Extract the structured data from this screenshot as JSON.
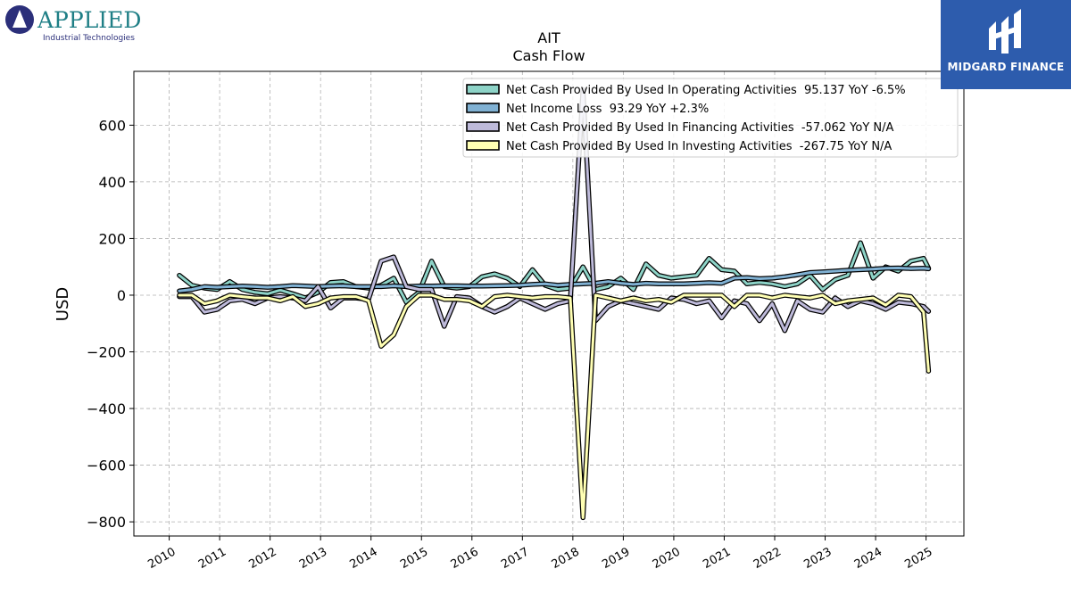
{
  "logos": {
    "left": {
      "brand": "APPLIED",
      "sub": "Industrial Technologies",
      "icon": "applied-logo-icon"
    },
    "right": {
      "wordmark": "MIDGARD FINANCE",
      "icon": "midgard-logo-icon"
    }
  },
  "chart_data": {
    "type": "line",
    "title": "AIT",
    "subtitle": "Cash Flow",
    "xlabel": "",
    "ylabel": "USD",
    "xlim": [
      2009.3,
      2025.75
    ],
    "ylim": [
      -850,
      790
    ],
    "yticks": [
      -800,
      -600,
      -400,
      -200,
      0,
      200,
      400,
      600
    ],
    "xticks": [
      "2010",
      "2011",
      "2012",
      "2013",
      "2014",
      "2015",
      "2016",
      "2017",
      "2018",
      "2019",
      "2020",
      "2021",
      "2022",
      "2023",
      "2024",
      "2025"
    ],
    "grid": true,
    "legend_position": "top-right",
    "x": [
      2010.2,
      2010.45,
      2010.7,
      2010.95,
      2011.2,
      2011.45,
      2011.7,
      2011.95,
      2012.2,
      2012.45,
      2012.7,
      2012.95,
      2013.2,
      2013.45,
      2013.7,
      2013.95,
      2014.2,
      2014.45,
      2014.7,
      2014.95,
      2015.2,
      2015.45,
      2015.7,
      2015.95,
      2016.2,
      2016.45,
      2016.7,
      2016.95,
      2017.2,
      2017.45,
      2017.7,
      2017.95,
      2018.2,
      2018.45,
      2018.7,
      2018.95,
      2019.2,
      2019.45,
      2019.7,
      2019.95,
      2020.2,
      2020.45,
      2020.7,
      2020.95,
      2021.2,
      2021.45,
      2021.7,
      2021.95,
      2022.2,
      2022.45,
      2022.7,
      2022.95,
      2023.2,
      2023.45,
      2023.7,
      2023.95,
      2024.2,
      2024.45,
      2024.7,
      2024.95,
      2025.05
    ],
    "series": [
      {
        "name": "Net Cash Provided By Used In Operating Activities  95.137 YoY -6.5%",
        "color": "#8dd3c7",
        "values": [
          70,
          35,
          25,
          20,
          48,
          20,
          10,
          5,
          18,
          5,
          -10,
          10,
          45,
          48,
          30,
          25,
          35,
          60,
          -25,
          10,
          120,
          30,
          25,
          30,
          65,
          75,
          60,
          30,
          90,
          35,
          20,
          25,
          100,
          20,
          30,
          60,
          20,
          110,
          70,
          60,
          65,
          70,
          130,
          90,
          85,
          40,
          45,
          40,
          30,
          40,
          70,
          20,
          55,
          70,
          185,
          60,
          100,
          85,
          120,
          130,
          95
        ]
      },
      {
        "name": "Net Income Loss  93.29 YoY +2.3%",
        "color": "#80b1d3",
        "values": [
          15,
          20,
          30,
          28,
          30,
          32,
          30,
          28,
          30,
          34,
          32,
          30,
          32,
          33,
          30,
          30,
          30,
          33,
          30,
          32,
          32,
          33,
          33,
          32,
          32,
          33,
          34,
          35,
          38,
          40,
          35,
          38,
          40,
          42,
          48,
          42,
          38,
          42,
          40,
          40,
          40,
          42,
          44,
          42,
          60,
          62,
          58,
          60,
          65,
          72,
          80,
          82,
          85,
          88,
          90,
          92,
          95,
          96,
          94,
          95,
          93
        ]
      },
      {
        "name": "Net Cash Provided By Used In Financing Activities  -57.062 YoY N/A",
        "color": "#bebada",
        "values": [
          -5,
          -5,
          -60,
          -50,
          -20,
          -15,
          -30,
          -10,
          -5,
          -10,
          -20,
          30,
          -45,
          -10,
          -10,
          -15,
          120,
          135,
          30,
          20,
          20,
          -110,
          -5,
          -10,
          -40,
          -60,
          -40,
          -10,
          -30,
          -50,
          -30,
          -20,
          725,
          -90,
          -40,
          -20,
          -30,
          -40,
          -50,
          -10,
          -15,
          -30,
          -20,
          -80,
          -20,
          -30,
          -90,
          -30,
          -125,
          -20,
          -50,
          -60,
          -10,
          -40,
          -20,
          -30,
          -50,
          -25,
          -30,
          -40,
          -57
        ]
      },
      {
        "name": "Net Cash Provided By Used In Investing Activities  -267.75 YoY N/A",
        "color": "#ffffb3",
        "values": [
          0,
          0,
          -30,
          -20,
          0,
          -5,
          -10,
          -10,
          -20,
          -5,
          -40,
          -30,
          -10,
          -5,
          -5,
          -20,
          -180,
          -140,
          -40,
          0,
          0,
          -15,
          -15,
          -20,
          -40,
          -5,
          0,
          -5,
          -10,
          -5,
          -5,
          -10,
          -785,
          0,
          -10,
          -20,
          -10,
          -20,
          -15,
          -25,
          0,
          0,
          0,
          0,
          -40,
          0,
          0,
          -10,
          0,
          -5,
          -10,
          0,
          -30,
          -20,
          -15,
          -10,
          -35,
          0,
          -5,
          -60,
          -268
        ]
      }
    ]
  }
}
